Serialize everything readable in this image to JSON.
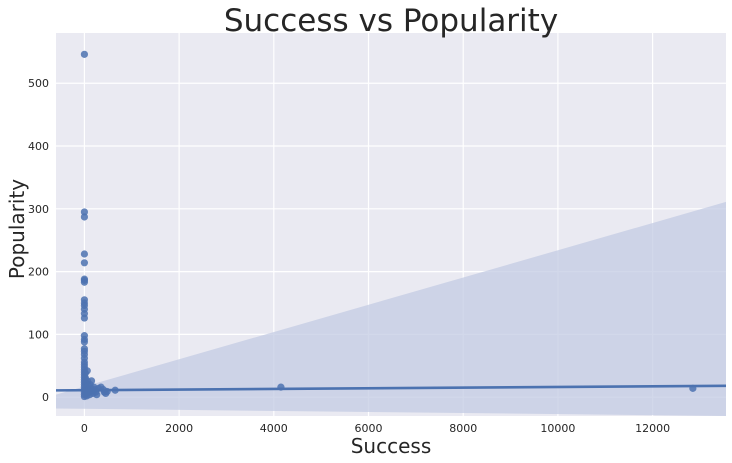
{
  "chart_data": {
    "type": "scatter",
    "title": "Success vs Popularity",
    "xlabel": "Success",
    "ylabel": "Popularity",
    "xlim": [
      -600,
      13550
    ],
    "ylim": [
      -30,
      580
    ],
    "xticks": [
      0,
      2000,
      4000,
      6000,
      8000,
      10000,
      12000
    ],
    "yticks": [
      0,
      100,
      200,
      300,
      400,
      500
    ],
    "grid": true,
    "colors": {
      "background": "#eaeaf2",
      "grid": "#ffffff",
      "points": "#4c72b0",
      "ci_band": "#c3cbe3"
    },
    "points": [
      [
        0,
        546
      ],
      [
        0,
        295
      ],
      [
        0,
        287
      ],
      [
        0,
        228
      ],
      [
        0,
        214
      ],
      [
        0,
        188
      ],
      [
        0,
        186
      ],
      [
        0,
        183
      ],
      [
        0,
        155
      ],
      [
        0,
        150
      ],
      [
        0,
        146
      ],
      [
        0,
        140
      ],
      [
        0,
        133
      ],
      [
        0,
        126
      ],
      [
        0,
        98
      ],
      [
        0,
        92
      ],
      [
        0,
        88
      ],
      [
        0,
        77
      ],
      [
        0,
        73
      ],
      [
        0,
        68
      ],
      [
        0,
        62
      ],
      [
        0,
        56
      ],
      [
        0,
        52
      ],
      [
        0,
        48
      ],
      [
        0,
        44
      ],
      [
        0,
        40
      ],
      [
        0,
        36
      ],
      [
        0,
        32
      ],
      [
        0,
        28
      ],
      [
        0,
        24
      ],
      [
        0,
        20
      ],
      [
        0,
        16
      ],
      [
        0,
        12
      ],
      [
        0,
        8
      ],
      [
        0,
        4
      ],
      [
        0,
        1
      ],
      [
        20,
        38
      ],
      [
        25,
        30
      ],
      [
        30,
        22
      ],
      [
        35,
        15
      ],
      [
        40,
        10
      ],
      [
        45,
        6
      ],
      [
        50,
        2
      ],
      [
        60,
        42
      ],
      [
        70,
        25
      ],
      [
        80,
        18
      ],
      [
        90,
        12
      ],
      [
        100,
        8
      ],
      [
        110,
        4
      ],
      [
        120,
        20
      ],
      [
        140,
        14
      ],
      [
        150,
        26
      ],
      [
        160,
        10
      ],
      [
        180,
        6
      ],
      [
        200,
        16
      ],
      [
        220,
        12
      ],
      [
        240,
        8
      ],
      [
        260,
        4
      ],
      [
        300,
        14
      ],
      [
        350,
        16
      ],
      [
        400,
        12
      ],
      [
        420,
        8
      ],
      [
        450,
        6
      ],
      [
        480,
        9
      ],
      [
        650,
        11
      ],
      [
        4150,
        16
      ],
      [
        12850,
        14
      ]
    ],
    "regression": {
      "line": [
        [
          -600,
          10.8
        ],
        [
          13550,
          18
        ]
      ],
      "ci_upper": [
        [
          -600,
          4
        ],
        [
          13550,
          311
        ]
      ],
      "ci_lower": [
        [
          -600,
          -18
        ],
        [
          13550,
          -30
        ]
      ]
    }
  }
}
